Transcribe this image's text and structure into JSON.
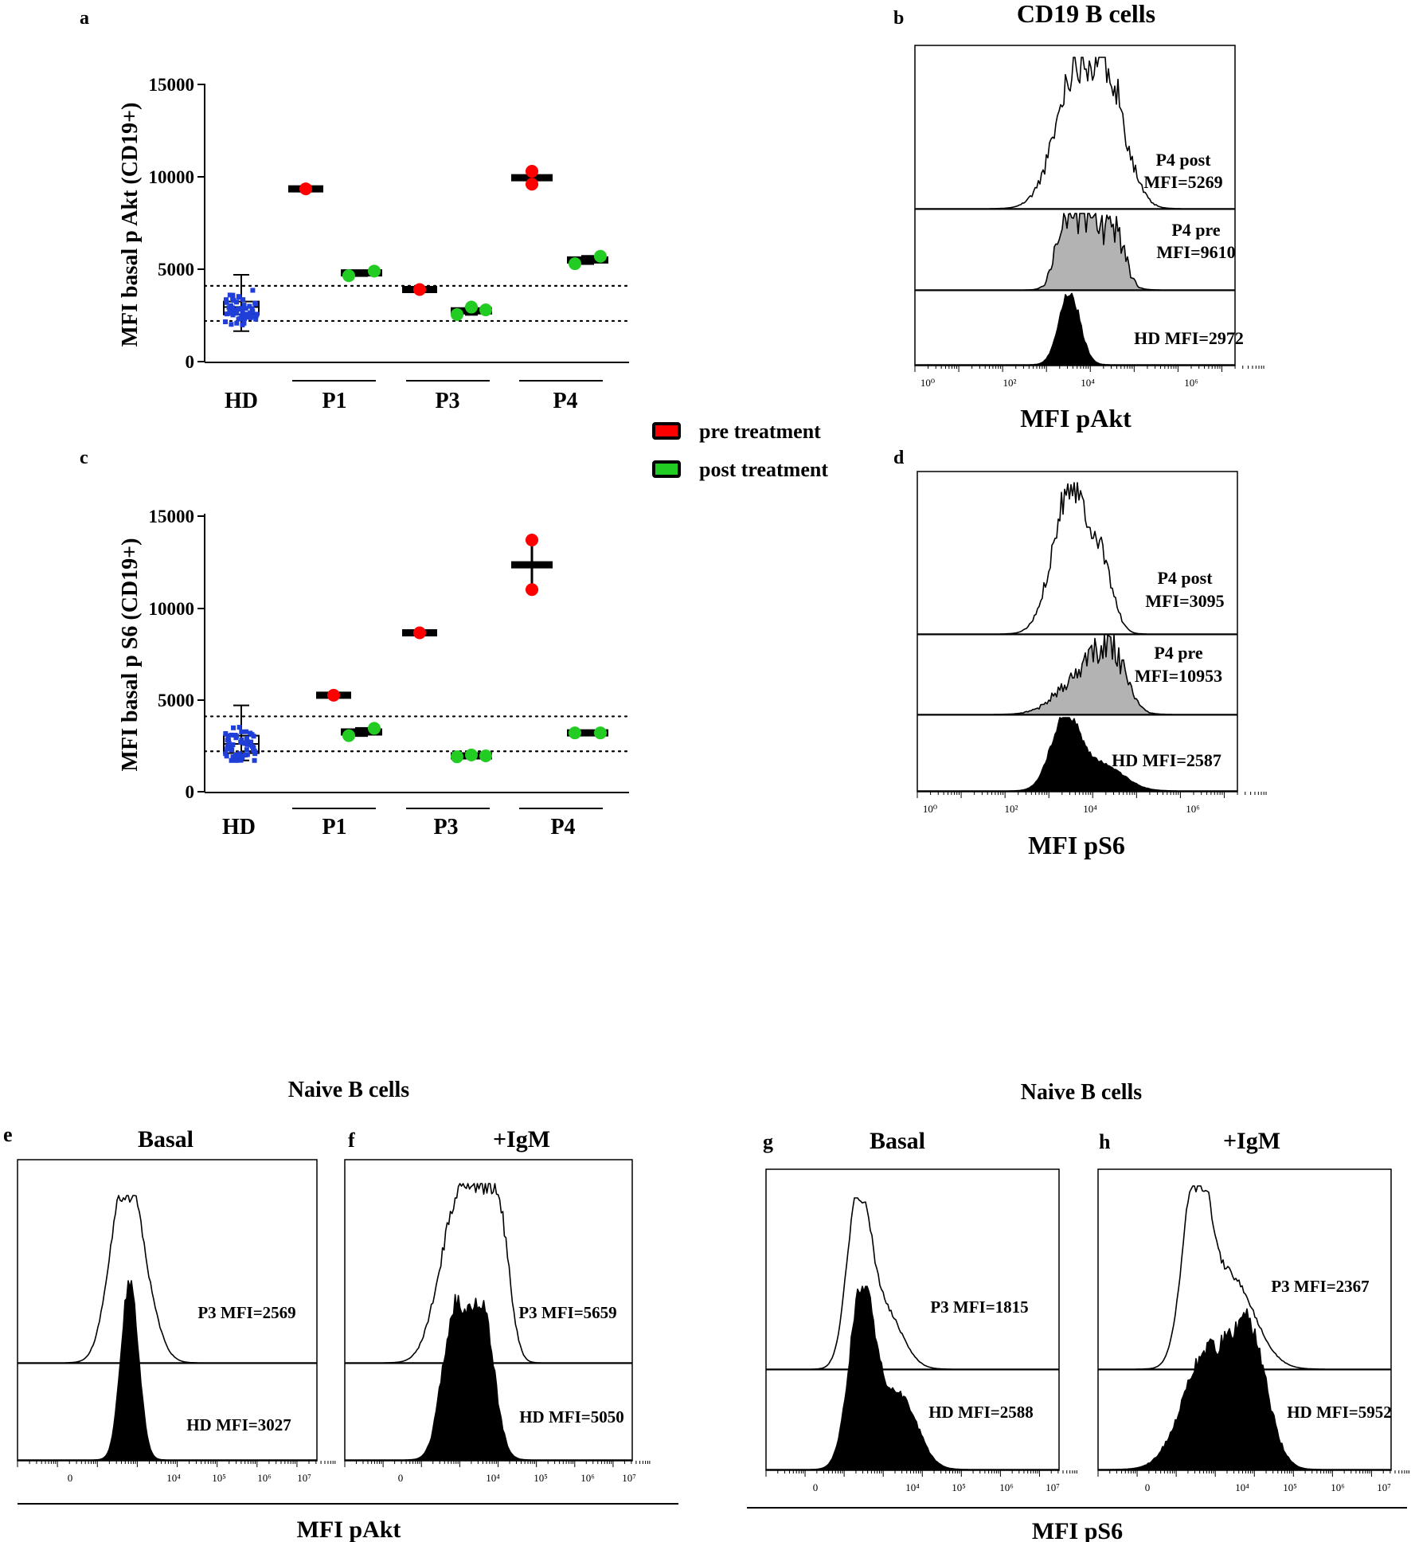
{
  "colors": {
    "pre": "#ff0000",
    "post": "#22cc22",
    "hd": "#1f3fd8",
    "fill_gray": "#b3b3b3",
    "fill_black": "#000000"
  },
  "legend": {
    "pre": "pre treatment",
    "post": "post treatment"
  },
  "panels": {
    "a": {
      "letter": "a",
      "ylabel": "MFI basal p Akt (CD19+)",
      "yticks": [
        "15000",
        "10000",
        "5000",
        "0"
      ],
      "groups": [
        "HD",
        "P1",
        "P3",
        "P4"
      ]
    },
    "c": {
      "letter": "c",
      "ylabel": "MFI basal p S6 (CD19+)",
      "yticks": [
        "15000",
        "10000",
        "5000",
        "0"
      ],
      "groups": [
        "HD",
        "P1",
        "P3",
        "P4"
      ]
    },
    "b": {
      "letter": "b",
      "title": "CD19 B cells",
      "xlabel": "MFI pAkt",
      "ticks": [
        "10⁰",
        "10²",
        "10⁴",
        "10⁶"
      ],
      "labels": [
        [
          "P4 post",
          "MFI=5269"
        ],
        [
          "P4 pre",
          "MFI=9610"
        ],
        [
          "HD  MFI=2972"
        ]
      ]
    },
    "d": {
      "letter": "d",
      "xlabel": "MFI pS6",
      "ticks": [
        "10⁰",
        "10²",
        "10⁴",
        "10⁶"
      ],
      "labels": [
        [
          "P4 post",
          "MFI=3095"
        ],
        [
          "P4 pre",
          "MFI=10953"
        ],
        [
          "HD  MFI=2587"
        ]
      ]
    },
    "bottom": {
      "naive_title": "Naive B cells",
      "e": {
        "letter": "e",
        "title": "Basal",
        "p3": "P3 MFI=2569",
        "hd": "HD  MFI=3027"
      },
      "f": {
        "letter": "f",
        "title": "+IgM",
        "p3": "P3 MFI=5659",
        "hd": "HD  MFI=5050"
      },
      "g": {
        "letter": "g",
        "title": "Basal",
        "p3": "P3 MFI=1815",
        "hd": "HD  MFI=2588"
      },
      "h": {
        "letter": "h",
        "title": "+IgM",
        "p3": "P3 MFI=2367",
        "hd": "HD  MFI=5952"
      },
      "xlabel_left": "MFI pAkt",
      "xlabel_right": "MFI pS6",
      "ticks": [
        "0",
        "10⁴",
        "10⁵",
        "10⁶",
        "10⁷"
      ]
    }
  },
  "chart_data": [
    {
      "id": "a",
      "type": "scatter",
      "ylabel": "MFI basal p Akt (CD19+)",
      "ylim": [
        0,
        15000
      ],
      "reference_lines": [
        4100,
        2200
      ],
      "categories": [
        "HD",
        "P1",
        "P3",
        "P4"
      ],
      "hd_box": {
        "min": 1650,
        "q1": 2550,
        "median": 2950,
        "q3": 3250,
        "max": 4700
      },
      "series": [
        {
          "name": "pre treatment",
          "groups": [
            {
              "group": "P1",
              "values": [
                9350
              ],
              "mean": 9350
            },
            {
              "group": "P3",
              "values": [
                3900
              ],
              "mean": 3900
            },
            {
              "group": "P4",
              "values": [
                10300,
                9600
              ],
              "mean": 9950
            }
          ]
        },
        {
          "name": "post treatment",
          "groups": [
            {
              "group": "P1",
              "values": [
                4650,
                4900
              ],
              "mean": 4800
            },
            {
              "group": "P3",
              "values": [
                2550,
                2950,
                2800
              ],
              "mean": 2750
            },
            {
              "group": "P4",
              "values": [
                5300,
                5700
              ],
              "mean": 5500
            }
          ]
        }
      ]
    },
    {
      "id": "c",
      "type": "scatter",
      "ylabel": "MFI basal p S6 (CD19+)",
      "ylim": [
        0,
        15000
      ],
      "reference_lines": [
        4100,
        2200
      ],
      "categories": [
        "HD",
        "P1",
        "P3",
        "P4"
      ],
      "hd_box": {
        "min": 1700,
        "q1": 2100,
        "median": 2600,
        "q3": 3050,
        "max": 4700
      },
      "series": [
        {
          "name": "pre treatment",
          "groups": [
            {
              "group": "P1",
              "values": [
                5250
              ],
              "mean": 5250
            },
            {
              "group": "P3",
              "values": [
                8650
              ],
              "mean": 8650
            },
            {
              "group": "P4",
              "values": [
                13700,
                11000
              ],
              "mean": 12350
            }
          ]
        },
        {
          "name": "post treatment",
          "groups": [
            {
              "group": "P1",
              "values": [
                3050,
                3450
              ],
              "mean": 3250
            },
            {
              "group": "P3",
              "values": [
                1900,
                2000,
                1950
              ],
              "mean": 1950
            },
            {
              "group": "P4",
              "values": [
                3200,
                3200
              ],
              "mean": 3200
            }
          ]
        }
      ]
    },
    {
      "id": "b",
      "type": "histogram",
      "title": "CD19 B cells",
      "xlabel": "MFI pAkt",
      "x_scale": "log10",
      "xlim": [
        0,
        7.3
      ],
      "series": [
        {
          "name": "P4 post",
          "mfi": 5269,
          "peak_log": 3.65,
          "width": 0.35
        },
        {
          "name": "P4 pre",
          "mfi": 9610,
          "peak_log": 3.4,
          "width": 0.35
        },
        {
          "name": "HD",
          "mfi": 2972,
          "peak_log": 3.45,
          "width": 0.2
        }
      ]
    },
    {
      "id": "d",
      "type": "histogram",
      "xlabel": "MFI pS6",
      "x_scale": "log10",
      "xlim": [
        0,
        7.3
      ],
      "series": [
        {
          "name": "P4 post",
          "mfi": 3095,
          "peak_log": 3.3,
          "width": 0.3
        },
        {
          "name": "P4 pre",
          "mfi": 10953,
          "peak_log": 3.85,
          "width": 0.25
        },
        {
          "name": "HD",
          "mfi": 2587,
          "peak_log": 3.25,
          "width": 0.3
        }
      ]
    },
    {
      "id": "e",
      "type": "histogram",
      "title": "Basal",
      "xlabel": "MFI pAkt",
      "series": [
        {
          "name": "P3",
          "mfi": 2569
        },
        {
          "name": "HD",
          "mfi": 3027
        }
      ]
    },
    {
      "id": "f",
      "type": "histogram",
      "title": "+IgM",
      "xlabel": "MFI pAkt",
      "series": [
        {
          "name": "P3",
          "mfi": 5659
        },
        {
          "name": "HD",
          "mfi": 5050
        }
      ]
    },
    {
      "id": "g",
      "type": "histogram",
      "title": "Basal",
      "xlabel": "MFI pS6",
      "series": [
        {
          "name": "P3",
          "mfi": 1815
        },
        {
          "name": "HD",
          "mfi": 2588
        }
      ]
    },
    {
      "id": "h",
      "type": "histogram",
      "title": "+IgM",
      "xlabel": "MFI pS6",
      "series": [
        {
          "name": "P3",
          "mfi": 2367
        },
        {
          "name": "HD",
          "mfi": 5952
        }
      ]
    }
  ]
}
